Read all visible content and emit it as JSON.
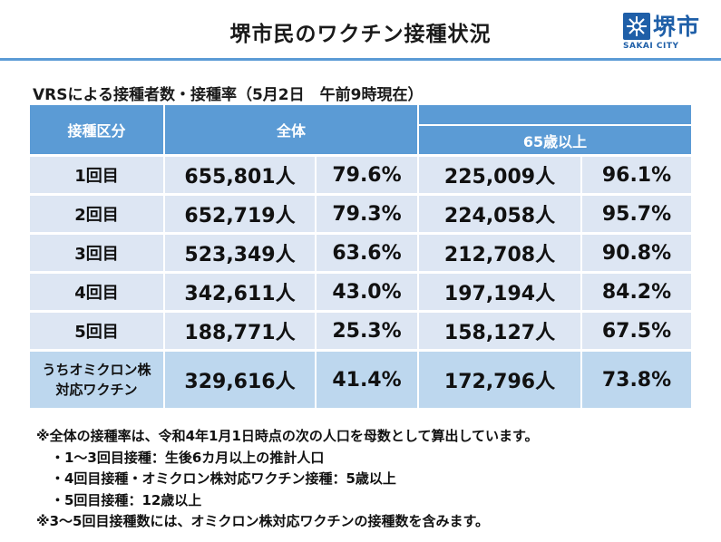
{
  "title": "堺市民のワクチン接種状況",
  "logo": {
    "name": "堺市",
    "sub": "SAKAI CITY"
  },
  "subtitle": "VRSによる接種者数・接種率（5月2日　午前9時現在）",
  "table": {
    "headers": {
      "category": "接種区分",
      "total": "全体",
      "over65": "65歳以上"
    },
    "rows": [
      {
        "label": "1回目",
        "total_count": "655,801人",
        "total_rate": "79.6%",
        "senior_count": "225,009人",
        "senior_rate": "96.1%"
      },
      {
        "label": "2回目",
        "total_count": "652,719人",
        "total_rate": "79.3%",
        "senior_count": "224,058人",
        "senior_rate": "95.7%"
      },
      {
        "label": "3回目",
        "total_count": "523,349人",
        "total_rate": "63.6%",
        "senior_count": "212,708人",
        "senior_rate": "90.8%"
      },
      {
        "label": "4回目",
        "total_count": "342,611人",
        "total_rate": "43.0%",
        "senior_count": "197,194人",
        "senior_rate": "84.2%"
      },
      {
        "label": "5回目",
        "total_count": "188,771人",
        "total_rate": "25.3%",
        "senior_count": "158,127人",
        "senior_rate": "67.5%"
      },
      {
        "label_line1": "うちオミクロン株",
        "label_line2": "対応ワクチン",
        "total_count": "329,616人",
        "total_rate": "41.4%",
        "senior_count": "172,796人",
        "senior_rate": "73.8%"
      }
    ]
  },
  "notes": [
    "※全体の接種率は、令和4年1月1日時点の次の人口を母数として算出しています。",
    "・1～3回目接種：生後6カ月以上の推計人口",
    "・4回目接種・オミクロン株対応ワクチン接種：5歳以上",
    "・5回目接種：12歳以上",
    "※3～5回目接種数には、オミクロン株対応ワクチンの接種数を含みます。"
  ],
  "colors": {
    "header": "#5b9bd5",
    "row": "#dde6f3",
    "highlight": "#bdd7ee",
    "brand": "#1f5fa8"
  }
}
